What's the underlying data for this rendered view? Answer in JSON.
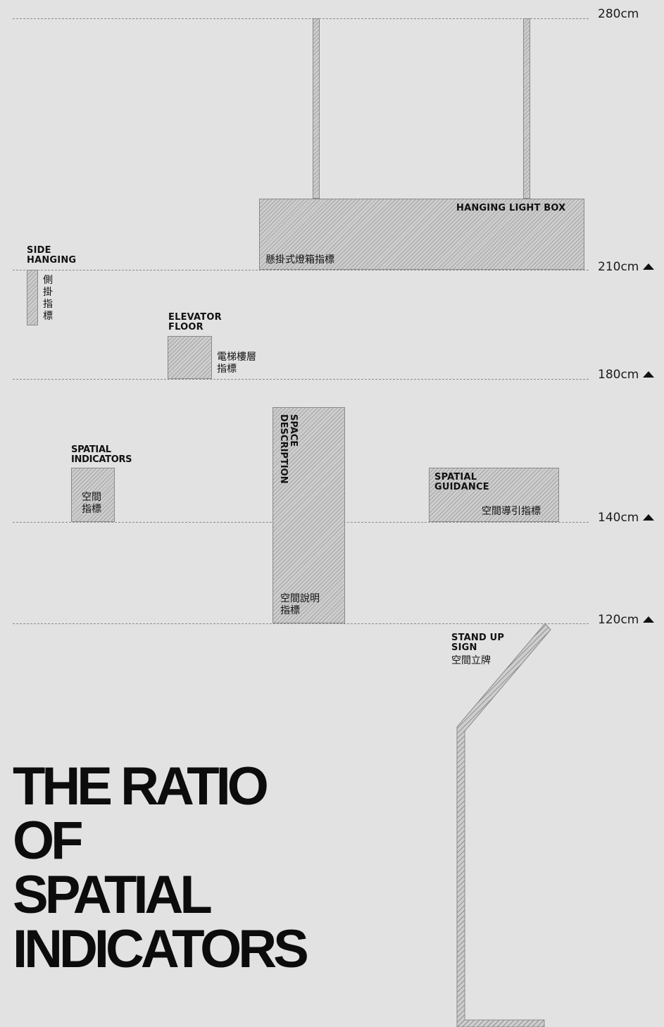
{
  "heights": [
    {
      "label": "280cm",
      "marker": false
    },
    {
      "label": "210cm",
      "marker": true
    },
    {
      "label": "180cm",
      "marker": true
    },
    {
      "label": "140cm",
      "marker": true
    },
    {
      "label": "120cm",
      "marker": true
    }
  ],
  "signs": {
    "hanging_light_box": {
      "en": "HANGING LIGHT BOX",
      "zh": "懸掛式燈箱指標"
    },
    "side_hanging": {
      "en": "SIDE\nHANGING",
      "zh": "側\n掛\n指\n標"
    },
    "elevator_floor": {
      "en": "ELEVATOR\nFLOOR",
      "zh": "電梯樓層\n指標"
    },
    "spatial_indicators": {
      "en": "SPATIAL\nINDICATORS",
      "zh": "空間\n指標"
    },
    "space_description": {
      "en": "SPACE\nDESCRIPTION",
      "zh": "空間說明\n指標"
    },
    "spatial_guidance": {
      "en": "SPATIAL\nGUIDANCE",
      "zh": "空間導引指標"
    },
    "stand_up_sign": {
      "en": "STAND UP\nSIGN",
      "zh": "空間立牌"
    }
  },
  "title": "THE RATIO\nOF\nSPATIAL\nINDICATORS"
}
